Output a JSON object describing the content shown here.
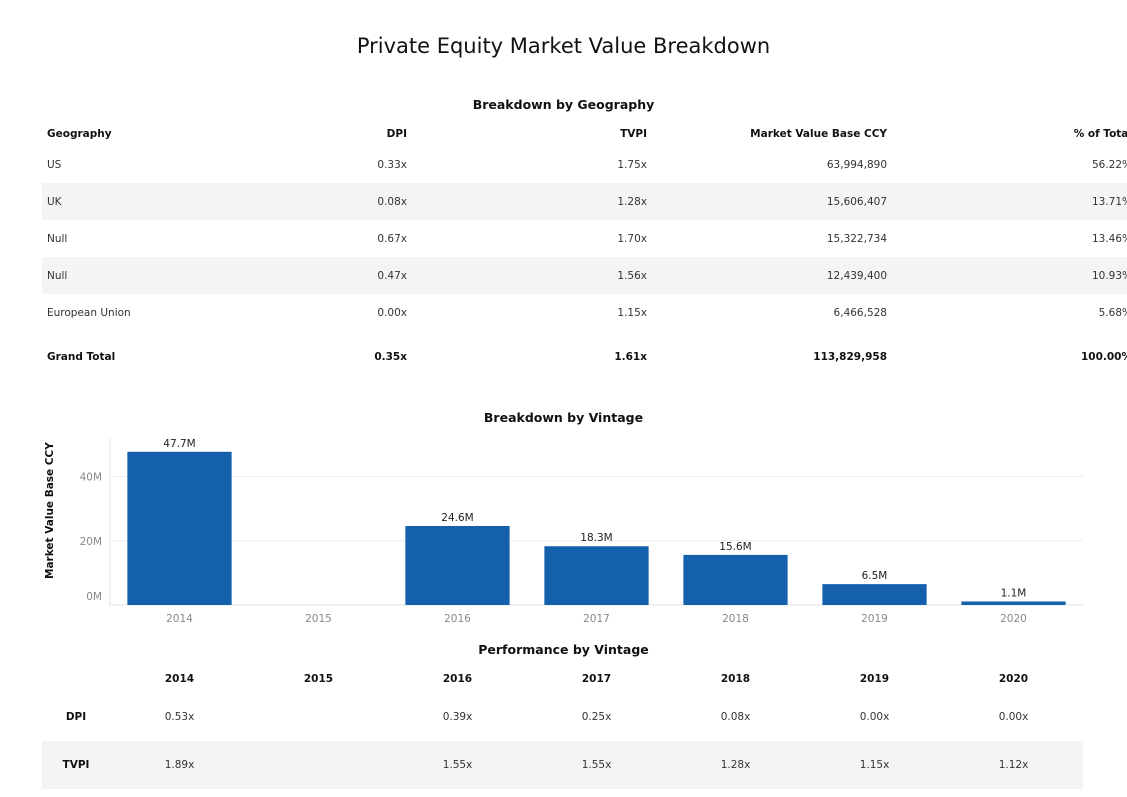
{
  "page": {
    "title": "Private Equity Market Value Breakdown"
  },
  "geography": {
    "title": "Breakdown by Geography",
    "columns": [
      "Geography",
      "DPI",
      "TVPI",
      "Market Value Base CCY",
      "% of Total"
    ],
    "rows": [
      [
        "US",
        "0.33x",
        "1.75x",
        "63,994,890",
        "56.22%"
      ],
      [
        "UK",
        "0.08x",
        "1.28x",
        "15,606,407",
        "13.71%"
      ],
      [
        "Null",
        "0.67x",
        "1.70x",
        "15,322,734",
        "13.46%"
      ],
      [
        "Null",
        "0.47x",
        "1.56x",
        "12,439,400",
        "10.93%"
      ],
      [
        "European Union",
        "0.00x",
        "1.15x",
        "6,466,528",
        "5.68%"
      ]
    ],
    "total": [
      "Grand Total",
      "0.35x",
      "1.61x",
      "113,829,958",
      "100.00%"
    ]
  },
  "vintage": {
    "title": "Breakdown by Vintage"
  },
  "chart_data": {
    "type": "bar",
    "categories": [
      "2014",
      "2015",
      "2016",
      "2017",
      "2018",
      "2019",
      "2020"
    ],
    "values": [
      47.7,
      null,
      24.6,
      18.3,
      15.6,
      6.5,
      1.1
    ],
    "value_labels": [
      "47.7M",
      "",
      "24.6M",
      "18.3M",
      "15.6M",
      "6.5M",
      "1.1M"
    ],
    "ylabel": "Market Value Base CCY",
    "yticks": [
      "0M",
      "20M",
      "40M"
    ],
    "ytick_values": [
      0,
      20,
      40
    ],
    "ylim": [
      0,
      52
    ],
    "bar_color": "#1560ac",
    "grid": true
  },
  "performance": {
    "title": "Performance by Vintage",
    "years": [
      "2014",
      "2015",
      "2016",
      "2017",
      "2018",
      "2019",
      "2020"
    ],
    "rows": [
      {
        "label": "DPI",
        "values": [
          "0.53x",
          "",
          "0.39x",
          "0.25x",
          "0.08x",
          "0.00x",
          "0.00x"
        ]
      },
      {
        "label": "TVPI",
        "values": [
          "1.89x",
          "",
          "1.55x",
          "1.55x",
          "1.28x",
          "1.15x",
          "1.12x"
        ]
      }
    ]
  }
}
